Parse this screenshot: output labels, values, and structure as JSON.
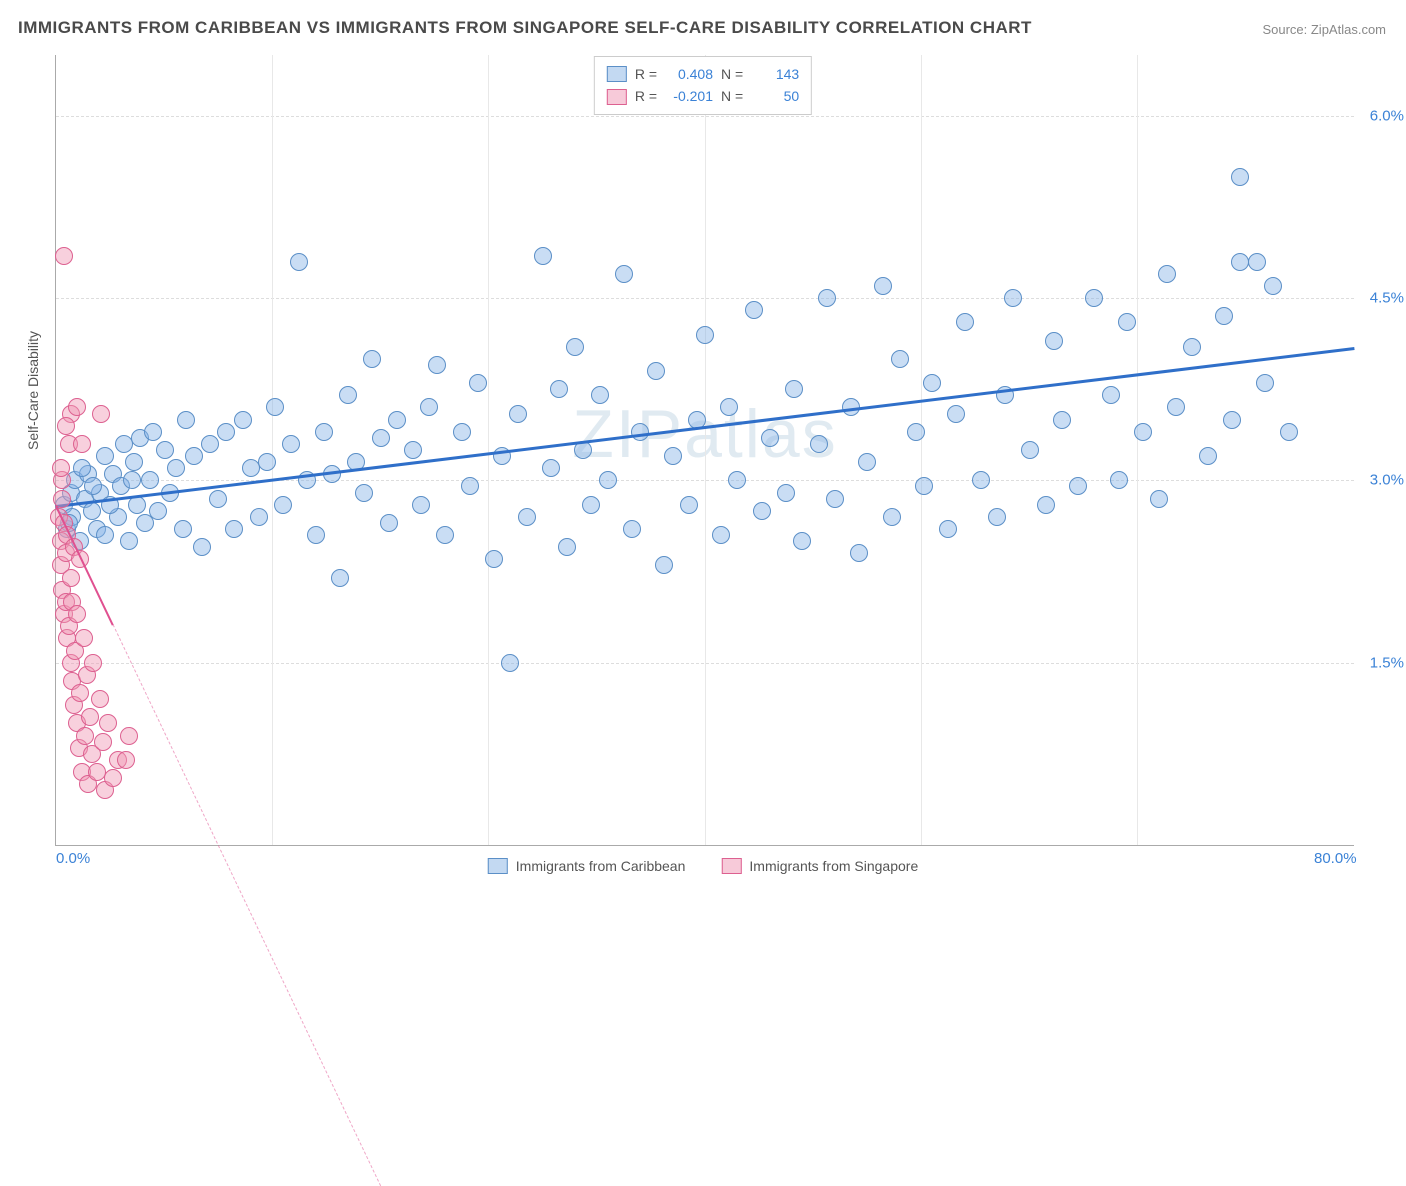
{
  "title": "IMMIGRANTS FROM CARIBBEAN VS IMMIGRANTS FROM SINGAPORE SELF-CARE DISABILITY CORRELATION CHART",
  "source": "Source: ZipAtlas.com",
  "watermark": "ZIPatlas",
  "chart": {
    "type": "scatter",
    "x_label": "",
    "y_label": "Self-Care Disability",
    "xlim": [
      0,
      80
    ],
    "ylim": [
      0,
      6.5
    ],
    "x_ticks": [
      {
        "v": 0,
        "l": "0.0%"
      },
      {
        "v": 80,
        "l": "80.0%"
      }
    ],
    "y_ticks": [
      {
        "v": 1.5,
        "l": "1.5%"
      },
      {
        "v": 3.0,
        "l": "3.0%"
      },
      {
        "v": 4.5,
        "l": "4.5%"
      },
      {
        "v": 6.0,
        "l": "6.0%"
      }
    ],
    "x_gridlines": [
      13.3,
      26.6,
      40,
      53.3,
      66.6
    ],
    "background_color": "#ffffff",
    "grid_color": "#dddddd",
    "marker_radius": 8,
    "series": [
      {
        "name": "Immigrants from Caribbean",
        "color_fill": "rgba(135,180,230,0.45)",
        "color_stroke": "#5b8fc7",
        "R": "0.408",
        "N": "143",
        "trend": {
          "x1": 0,
          "y1": 2.8,
          "x2": 80,
          "y2": 4.1,
          "color": "#2f6fc9",
          "width": 3,
          "dash": "solid"
        },
        "points": [
          [
            0.5,
            2.8
          ],
          [
            0.7,
            2.6
          ],
          [
            0.9,
            2.9
          ],
          [
            1,
            2.7
          ],
          [
            1.2,
            3.0
          ],
          [
            1.5,
            2.5
          ],
          [
            1.8,
            2.85
          ],
          [
            2,
            3.05
          ],
          [
            2.2,
            2.75
          ],
          [
            2.5,
            2.6
          ],
          [
            2.7,
            2.9
          ],
          [
            3,
            2.55
          ],
          [
            3,
            3.2
          ],
          [
            3.5,
            3.05
          ],
          [
            3.8,
            2.7
          ],
          [
            4,
            2.95
          ],
          [
            4.2,
            3.3
          ],
          [
            4.5,
            2.5
          ],
          [
            4.8,
            3.15
          ],
          [
            5,
            2.8
          ],
          [
            5.2,
            3.35
          ],
          [
            5.5,
            2.65
          ],
          [
            5.8,
            3.0
          ],
          [
            6,
            3.4
          ],
          [
            6.3,
            2.75
          ],
          [
            6.7,
            3.25
          ],
          [
            7,
            2.9
          ],
          [
            7.4,
            3.1
          ],
          [
            7.8,
            2.6
          ],
          [
            8,
            3.5
          ],
          [
            8.5,
            3.2
          ],
          [
            9,
            2.45
          ],
          [
            9.5,
            3.3
          ],
          [
            10,
            2.85
          ],
          [
            10.5,
            3.4
          ],
          [
            11,
            2.6
          ],
          [
            11.5,
            3.5
          ],
          [
            12,
            3.1
          ],
          [
            12.5,
            2.7
          ],
          [
            13,
            3.15
          ],
          [
            13.5,
            3.6
          ],
          [
            14,
            2.8
          ],
          [
            14.5,
            3.3
          ],
          [
            15,
            4.8
          ],
          [
            15.5,
            3.0
          ],
          [
            16,
            2.55
          ],
          [
            16.5,
            3.4
          ],
          [
            17,
            3.05
          ],
          [
            17.5,
            2.2
          ],
          [
            18,
            3.7
          ],
          [
            18.5,
            3.15
          ],
          [
            19,
            2.9
          ],
          [
            19.5,
            4.0
          ],
          [
            20,
            3.35
          ],
          [
            20.5,
            2.65
          ],
          [
            21,
            3.5
          ],
          [
            22,
            3.25
          ],
          [
            22.5,
            2.8
          ],
          [
            23,
            3.6
          ],
          [
            23.5,
            3.95
          ],
          [
            24,
            2.55
          ],
          [
            25,
            3.4
          ],
          [
            25.5,
            2.95
          ],
          [
            26,
            3.8
          ],
          [
            27,
            2.35
          ],
          [
            27.5,
            3.2
          ],
          [
            28,
            1.5
          ],
          [
            28.5,
            3.55
          ],
          [
            29,
            2.7
          ],
          [
            30,
            4.85
          ],
          [
            30.5,
            3.1
          ],
          [
            31,
            3.75
          ],
          [
            31.5,
            2.45
          ],
          [
            32,
            4.1
          ],
          [
            32.5,
            3.25
          ],
          [
            33,
            2.8
          ],
          [
            33.5,
            3.7
          ],
          [
            34,
            3.0
          ],
          [
            35,
            4.7
          ],
          [
            35.5,
            2.6
          ],
          [
            36,
            3.4
          ],
          [
            37,
            3.9
          ],
          [
            37.5,
            2.3
          ],
          [
            38,
            3.2
          ],
          [
            39,
            2.8
          ],
          [
            39.5,
            3.5
          ],
          [
            40,
            4.2
          ],
          [
            41,
            2.55
          ],
          [
            41.5,
            3.6
          ],
          [
            42,
            3.0
          ],
          [
            43,
            4.4
          ],
          [
            43.5,
            2.75
          ],
          [
            44,
            3.35
          ],
          [
            45,
            2.9
          ],
          [
            45.5,
            3.75
          ],
          [
            46,
            2.5
          ],
          [
            47,
            3.3
          ],
          [
            47.5,
            4.5
          ],
          [
            48,
            2.85
          ],
          [
            49,
            3.6
          ],
          [
            49.5,
            2.4
          ],
          [
            50,
            3.15
          ],
          [
            51,
            4.6
          ],
          [
            51.5,
            2.7
          ],
          [
            52,
            4.0
          ],
          [
            53,
            3.4
          ],
          [
            53.5,
            2.95
          ],
          [
            54,
            3.8
          ],
          [
            55,
            2.6
          ],
          [
            55.5,
            3.55
          ],
          [
            56,
            4.3
          ],
          [
            57,
            3.0
          ],
          [
            58,
            2.7
          ],
          [
            58.5,
            3.7
          ],
          [
            59,
            4.5
          ],
          [
            60,
            3.25
          ],
          [
            61,
            2.8
          ],
          [
            61.5,
            4.15
          ],
          [
            62,
            3.5
          ],
          [
            63,
            2.95
          ],
          [
            64,
            4.5
          ],
          [
            65,
            3.7
          ],
          [
            65.5,
            3.0
          ],
          [
            66,
            4.3
          ],
          [
            67,
            3.4
          ],
          [
            68,
            2.85
          ],
          [
            68.5,
            4.7
          ],
          [
            69,
            3.6
          ],
          [
            70,
            4.1
          ],
          [
            71,
            3.2
          ],
          [
            72,
            4.35
          ],
          [
            72.5,
            3.5
          ],
          [
            73,
            5.5
          ],
          [
            74,
            4.8
          ],
          [
            74.5,
            3.8
          ],
          [
            75,
            4.6
          ],
          [
            76,
            3.4
          ],
          [
            73,
            4.8
          ],
          [
            0.8,
            2.65
          ],
          [
            1.6,
            3.1
          ],
          [
            2.3,
            2.95
          ],
          [
            3.3,
            2.8
          ],
          [
            4.7,
            3.0
          ]
        ]
      },
      {
        "name": "Immigrants from Singapore",
        "color_fill": "rgba(240,150,180,0.45)",
        "color_stroke": "#dd6090",
        "R": "-0.201",
        "N": "50",
        "trend": {
          "x1": 0,
          "y1": 2.8,
          "x2": 10,
          "y2": 0,
          "color": "#e05090",
          "width": 2,
          "dash": "dashed",
          "extend_dash_to": 20
        },
        "points": [
          [
            0.2,
            2.7
          ],
          [
            0.3,
            2.5
          ],
          [
            0.3,
            2.3
          ],
          [
            0.4,
            2.85
          ],
          [
            0.4,
            2.1
          ],
          [
            0.5,
            2.65
          ],
          [
            0.5,
            1.9
          ],
          [
            0.6,
            2.4
          ],
          [
            0.6,
            2.0
          ],
          [
            0.7,
            1.7
          ],
          [
            0.7,
            2.55
          ],
          [
            0.8,
            3.3
          ],
          [
            0.8,
            1.8
          ],
          [
            0.9,
            2.2
          ],
          [
            0.9,
            1.5
          ],
          [
            1.0,
            2.0
          ],
          [
            1.0,
            1.35
          ],
          [
            1.1,
            2.45
          ],
          [
            1.1,
            1.15
          ],
          [
            1.2,
            1.6
          ],
          [
            1.3,
            1.9
          ],
          [
            1.3,
            1.0
          ],
          [
            1.4,
            0.8
          ],
          [
            1.5,
            2.35
          ],
          [
            1.5,
            1.25
          ],
          [
            1.6,
            0.6
          ],
          [
            1.7,
            1.7
          ],
          [
            1.8,
            0.9
          ],
          [
            1.9,
            1.4
          ],
          [
            2.0,
            0.5
          ],
          [
            2.1,
            1.05
          ],
          [
            2.2,
            0.75
          ],
          [
            2.3,
            1.5
          ],
          [
            2.5,
            0.6
          ],
          [
            2.7,
            1.2
          ],
          [
            2.9,
            0.85
          ],
          [
            3.0,
            0.45
          ],
          [
            3.2,
            1.0
          ],
          [
            3.5,
            0.55
          ],
          [
            3.8,
            0.7
          ],
          [
            0.5,
            4.85
          ],
          [
            0.9,
            3.55
          ],
          [
            1.6,
            3.3
          ],
          [
            1.3,
            3.6
          ],
          [
            4.3,
            0.7
          ],
          [
            4.5,
            0.9
          ],
          [
            0.4,
            3.0
          ],
          [
            0.6,
            3.45
          ],
          [
            0.3,
            3.1
          ],
          [
            2.8,
            3.55
          ]
        ]
      }
    ]
  },
  "legend_top": {
    "rows": [
      {
        "swatch": "blue",
        "R_label": "R =",
        "R": "0.408",
        "N_label": "N =",
        "N": "143"
      },
      {
        "swatch": "pink",
        "R_label": "R =",
        "R": "-0.201",
        "N_label": "N =",
        "N": "50"
      }
    ]
  },
  "legend_bottom": [
    {
      "swatch": "blue",
      "label": "Immigrants from Caribbean"
    },
    {
      "swatch": "pink",
      "label": "Immigrants from Singapore"
    }
  ]
}
